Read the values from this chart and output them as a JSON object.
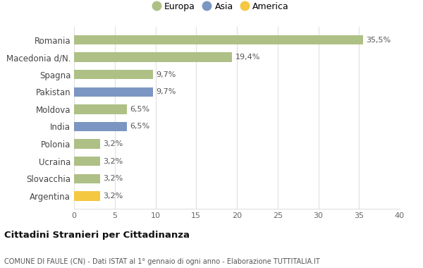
{
  "countries": [
    "Romania",
    "Macedonia d/N.",
    "Spagna",
    "Pakistan",
    "Moldova",
    "India",
    "Polonia",
    "Ucraina",
    "Slovacchia",
    "Argentina"
  ],
  "values": [
    35.5,
    19.4,
    9.7,
    9.7,
    6.5,
    6.5,
    3.2,
    3.2,
    3.2,
    3.2
  ],
  "labels": [
    "35,5%",
    "19,4%",
    "9,7%",
    "9,7%",
    "6,5%",
    "6,5%",
    "3,2%",
    "3,2%",
    "3,2%",
    "3,2%"
  ],
  "continents": [
    "Europa",
    "Europa",
    "Europa",
    "Asia",
    "Europa",
    "Asia",
    "Europa",
    "Europa",
    "Europa",
    "America"
  ],
  "bar_colors": [
    "#aec085",
    "#aec085",
    "#aec085",
    "#7b96c2",
    "#aec085",
    "#7b96c2",
    "#aec085",
    "#aec085",
    "#aec085",
    "#f5c842"
  ],
  "xlim": [
    0,
    40
  ],
  "xticks": [
    0,
    5,
    10,
    15,
    20,
    25,
    30,
    35,
    40
  ],
  "title": "Cittadini Stranieri per Cittadinanza",
  "subtitle": "COMUNE DI FAULE (CN) - Dati ISTAT al 1° gennaio di ogni anno - Elaborazione TUTTITALIA.IT",
  "background_color": "#ffffff",
  "grid_color": "#e0e0e0",
  "legend_labels": [
    "Europa",
    "Asia",
    "America"
  ],
  "legend_colors": [
    "#aec085",
    "#7b96c2",
    "#f5c842"
  ]
}
